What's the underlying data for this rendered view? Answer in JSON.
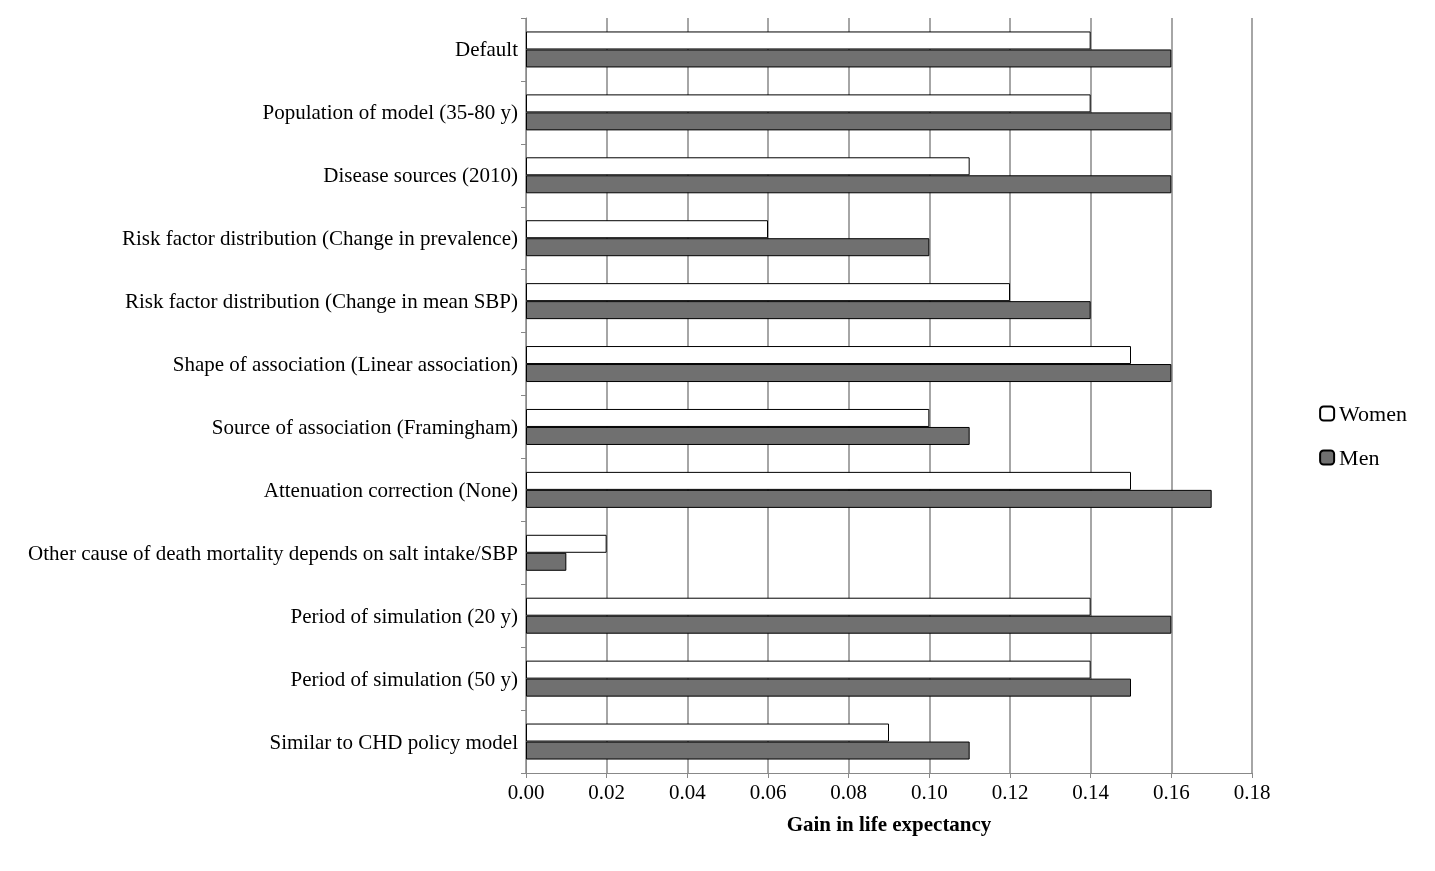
{
  "chart_data": {
    "type": "bar",
    "orientation": "horizontal",
    "xlabel": "Gain in life expectancy",
    "categories": [
      "Default",
      "Population of model (35-80 y)",
      "Disease sources (2010)",
      "Risk factor distribution (Change in prevalence)",
      "Risk factor distribution (Change in mean SBP)",
      "Shape of association (Linear association)",
      "Source of association (Framingham)",
      "Attenuation correction (None)",
      "Other cause of death mortality depends on salt intake/SBP",
      "Period of simulation (20 y)",
      "Period of simulation (50 y)",
      "Similar to CHD policy model"
    ],
    "series": [
      {
        "name": "Women",
        "color": "#ffffff",
        "values": [
          0.14,
          0.14,
          0.11,
          0.06,
          0.12,
          0.15,
          0.1,
          0.15,
          0.02,
          0.14,
          0.14,
          0.09
        ]
      },
      {
        "name": "Men",
        "color": "#707070",
        "values": [
          0.16,
          0.16,
          0.16,
          0.1,
          0.14,
          0.16,
          0.11,
          0.17,
          0.01,
          0.16,
          0.15,
          0.11
        ]
      }
    ],
    "xlim": [
      0,
      0.18
    ],
    "xticks": [
      {
        "value": 0,
        "label": "0.00"
      },
      {
        "value": 0.02,
        "label": "0.02"
      },
      {
        "value": 0.04,
        "label": "0.04"
      },
      {
        "value": 0.06,
        "label": "0.06"
      },
      {
        "value": 0.08,
        "label": "0.08"
      },
      {
        "value": 0.1,
        "label": "0.10"
      },
      {
        "value": 0.12,
        "label": "0.12"
      },
      {
        "value": 0.14,
        "label": "0.14"
      },
      {
        "value": 0.16,
        "label": "0.16"
      },
      {
        "value": 0.18,
        "label": "0.18"
      }
    ],
    "grid": "x",
    "legend": "right"
  }
}
